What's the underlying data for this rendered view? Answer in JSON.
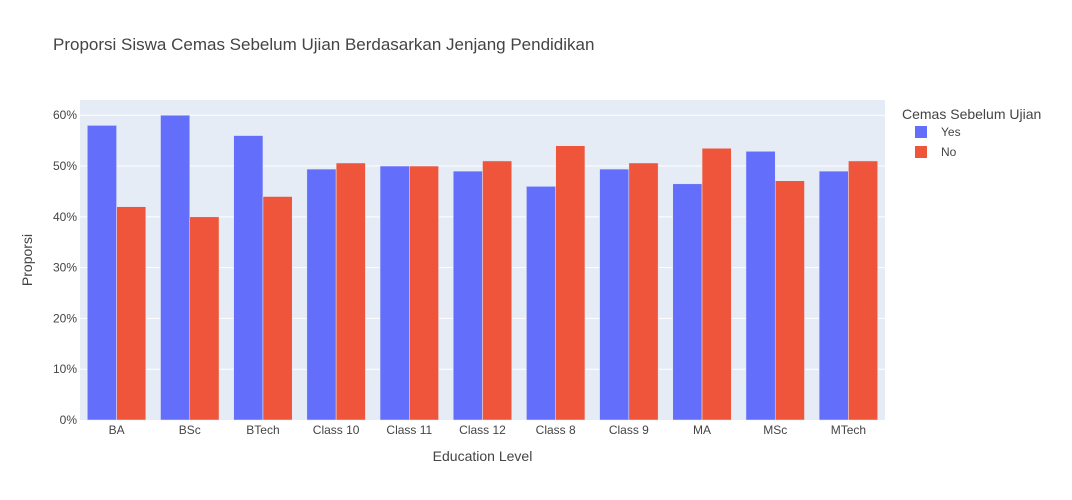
{
  "chart_data": {
    "type": "bar",
    "title": "Proporsi Siswa Cemas Sebelum Ujian Berdasarkan Jenjang Pendidikan",
    "xlabel": "Education Level",
    "ylabel": "Proporsi",
    "categories": [
      "BA",
      "BSc",
      "BTech",
      "Class 10",
      "Class 11",
      "Class 12",
      "Class 8",
      "Class 9",
      "MA",
      "MSc",
      "MTech"
    ],
    "series": [
      {
        "name": "Yes",
        "color": "#636efa",
        "values": [
          58,
          60,
          56,
          49.4,
          50,
          49,
          46,
          49.4,
          46.5,
          52.9,
          49
        ]
      },
      {
        "name": "No",
        "color": "#ef553b",
        "values": [
          42,
          40,
          44,
          50.6,
          50,
          51,
          54,
          50.6,
          53.5,
          47.1,
          51
        ]
      }
    ],
    "ylim": [
      0,
      63
    ],
    "yticks": [
      "0%",
      "10%",
      "20%",
      "30%",
      "40%",
      "50%",
      "60%"
    ],
    "ytick_values": [
      0,
      10,
      20,
      30,
      40,
      50,
      60
    ],
    "grid": true,
    "plot_bgcolor": "#e5ecf6",
    "legend": {
      "title": "Cemas Sebelum Ujian",
      "position": "right"
    }
  }
}
